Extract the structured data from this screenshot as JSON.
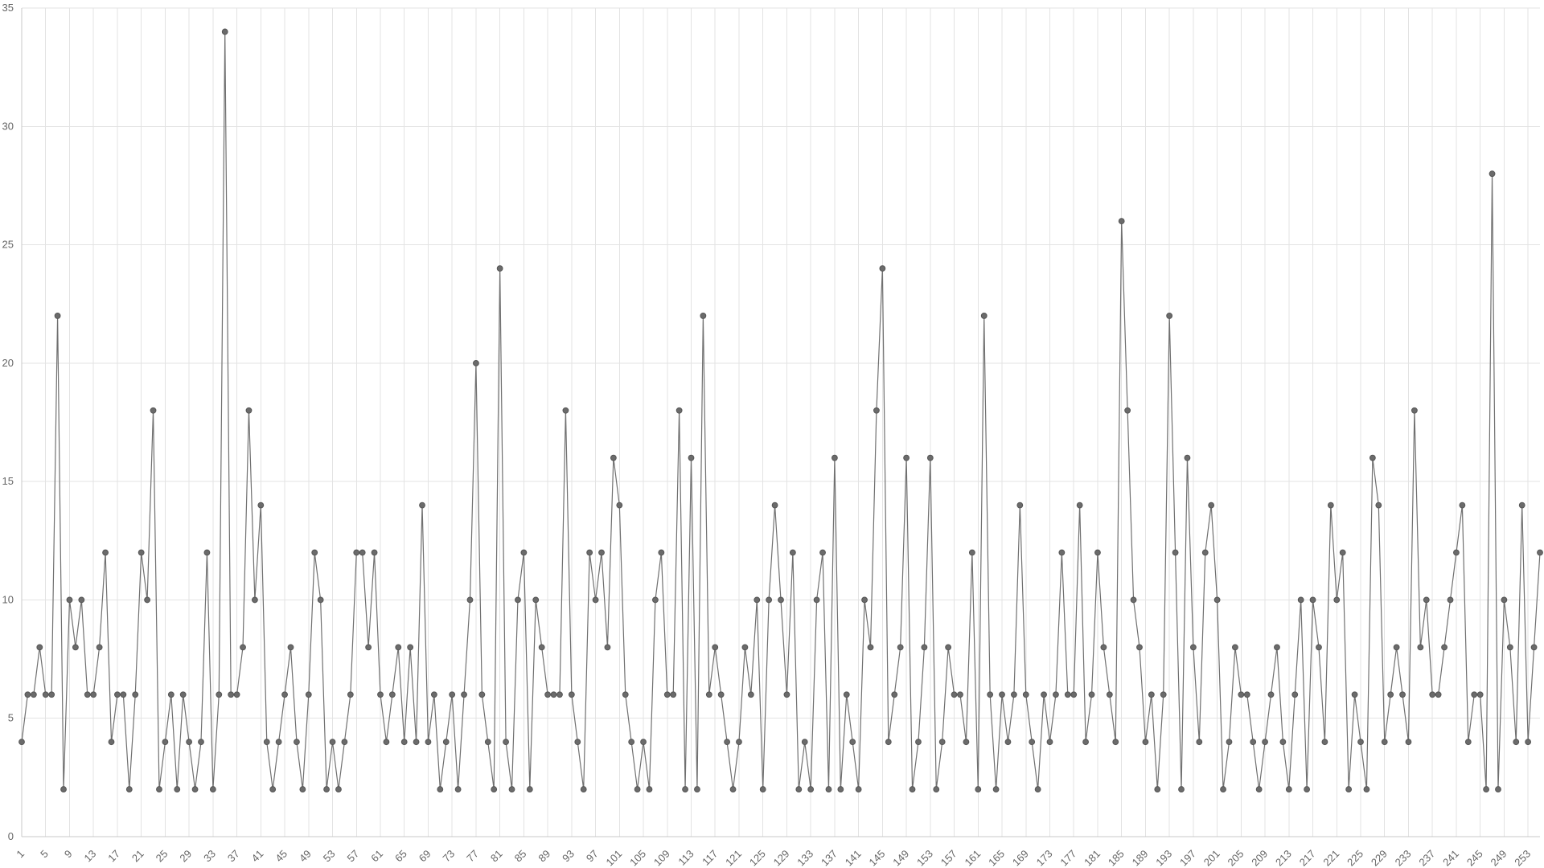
{
  "chart_data": {
    "type": "line",
    "title": "",
    "xlabel": "",
    "ylabel": "",
    "x_start": 1,
    "x_end": 255,
    "ylim": [
      0,
      35
    ],
    "y_ticks": [
      0,
      5,
      10,
      15,
      20,
      25,
      30,
      35
    ],
    "x_tick_every": 4,
    "grid": true,
    "legend": "none",
    "colors": {
      "line": "#707070",
      "point": "#6b6b6b",
      "point_stroke": "#555555",
      "grid": "#e3e3e3",
      "tick_text": "#666666"
    },
    "series": [
      {
        "values": [
          4,
          6,
          6,
          8,
          6,
          6,
          22,
          2,
          10,
          8,
          10,
          6,
          6,
          8,
          12,
          4,
          6,
          6,
          2,
          6,
          12,
          10,
          18,
          2,
          4,
          6,
          2,
          6,
          4,
          2,
          4,
          12,
          2,
          6,
          34,
          6,
          6,
          8,
          18,
          10,
          14,
          4,
          2,
          4,
          6,
          8,
          4,
          2,
          6,
          12,
          10,
          2,
          4,
          2,
          4,
          6,
          12,
          12,
          8,
          12,
          6,
          4,
          6,
          8,
          4,
          8,
          4,
          14,
          4,
          6,
          2,
          4,
          6,
          2,
          6,
          10,
          20,
          6,
          4,
          2,
          24,
          4,
          2,
          10,
          12,
          2,
          10,
          8,
          6,
          6,
          6,
          18,
          6,
          4,
          2,
          12,
          10,
          12,
          8,
          16,
          14,
          6,
          4,
          2,
          4,
          2,
          10,
          12,
          6,
          6,
          18,
          2,
          16,
          2,
          22,
          6,
          8,
          6,
          4,
          2,
          4,
          8,
          6,
          10,
          2,
          10,
          14,
          10,
          6,
          12,
          2,
          4,
          2,
          10,
          12,
          2,
          16,
          2,
          6,
          4,
          2,
          10,
          8,
          18,
          24,
          4,
          6,
          8,
          16,
          2,
          4,
          8,
          16,
          2,
          4,
          8,
          6,
          6,
          4,
          12,
          2,
          22,
          6,
          2,
          6,
          4,
          6,
          14,
          6,
          4,
          2,
          6,
          4,
          6,
          12,
          6,
          6,
          14,
          4,
          6,
          12,
          8,
          6,
          4,
          26,
          18,
          10,
          8,
          4,
          6,
          2,
          6,
          22,
          12,
          2,
          16,
          8,
          4,
          12,
          14,
          10,
          2,
          4,
          8,
          6,
          6,
          4,
          2,
          4,
          6,
          8,
          4,
          2,
          6,
          10,
          2,
          10,
          8,
          4,
          14,
          10,
          12,
          2,
          6,
          4,
          2,
          16,
          14,
          4,
          6,
          8,
          6,
          4,
          18,
          8,
          10,
          6,
          6,
          8,
          10,
          12,
          14,
          4,
          6,
          6,
          2,
          28,
          2,
          10,
          8,
          4,
          14,
          4,
          8,
          12
        ]
      }
    ]
  }
}
